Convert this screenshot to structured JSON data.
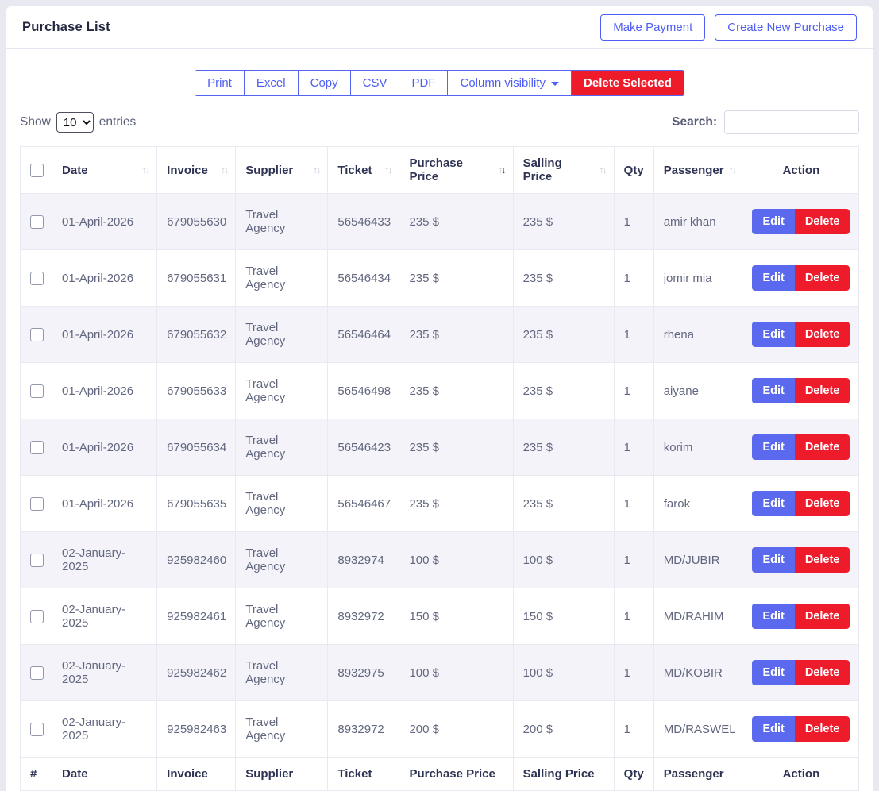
{
  "header": {
    "title": "Purchase List",
    "make_payment_label": "Make Payment",
    "create_new_purchase_label": "Create New Purchase"
  },
  "toolbar": {
    "export_buttons": [
      "Print",
      "Excel",
      "Copy",
      "CSV",
      "PDF"
    ],
    "column_visibility_label": "Column visibility",
    "delete_selected_label": "Delete Selected"
  },
  "controls": {
    "show_label": "Show",
    "entries_label": "entries",
    "page_size_selected": "10",
    "search_label": "Search:",
    "search_value": ""
  },
  "table": {
    "columns": [
      {
        "key": "checkbox",
        "label": "",
        "sortable": false
      },
      {
        "key": "date",
        "label": "Date",
        "sortable": true
      },
      {
        "key": "invoice",
        "label": "Invoice",
        "sortable": true
      },
      {
        "key": "supplier",
        "label": "Supplier",
        "sortable": true
      },
      {
        "key": "ticket",
        "label": "Ticket",
        "sortable": true
      },
      {
        "key": "purchase_price",
        "label": "Purchase Price",
        "sortable": true,
        "sorted": "desc"
      },
      {
        "key": "salling_price",
        "label": "Salling Price",
        "sortable": true
      },
      {
        "key": "qty",
        "label": "Qty",
        "sortable": false
      },
      {
        "key": "passenger",
        "label": "Passenger",
        "sortable": true
      },
      {
        "key": "action",
        "label": "Action",
        "sortable": false
      }
    ],
    "footer_columns": [
      "#",
      "Date",
      "Invoice",
      "Supplier",
      "Ticket",
      "Purchase Price",
      "Salling Price",
      "Qty",
      "Passenger",
      "Action"
    ],
    "actions": {
      "edit": "Edit",
      "delete": "Delete"
    },
    "rows": [
      {
        "date": "01-April-2026",
        "invoice": "679055630",
        "supplier": "Travel Agency",
        "ticket": "56546433",
        "purchase_price": "235 $",
        "salling_price": "235 $",
        "qty": "1",
        "passenger": "amir khan"
      },
      {
        "date": "01-April-2026",
        "invoice": "679055631",
        "supplier": "Travel Agency",
        "ticket": "56546434",
        "purchase_price": "235 $",
        "salling_price": "235 $",
        "qty": "1",
        "passenger": "jomir mia"
      },
      {
        "date": "01-April-2026",
        "invoice": "679055632",
        "supplier": "Travel Agency",
        "ticket": "56546464",
        "purchase_price": "235 $",
        "salling_price": "235 $",
        "qty": "1",
        "passenger": "rhena"
      },
      {
        "date": "01-April-2026",
        "invoice": "679055633",
        "supplier": "Travel Agency",
        "ticket": "56546498",
        "purchase_price": "235 $",
        "salling_price": "235 $",
        "qty": "1",
        "passenger": "aiyane"
      },
      {
        "date": "01-April-2026",
        "invoice": "679055634",
        "supplier": "Travel Agency",
        "ticket": "56546423",
        "purchase_price": "235 $",
        "salling_price": "235 $",
        "qty": "1",
        "passenger": "korim"
      },
      {
        "date": "01-April-2026",
        "invoice": "679055635",
        "supplier": "Travel Agency",
        "ticket": "56546467",
        "purchase_price": "235 $",
        "salling_price": "235 $",
        "qty": "1",
        "passenger": "farok"
      },
      {
        "date": "02-January-2025",
        "invoice": "925982460",
        "supplier": "Travel Agency",
        "ticket": "8932974",
        "purchase_price": "100 $",
        "salling_price": "100 $",
        "qty": "1",
        "passenger": "MD/JUBIR"
      },
      {
        "date": "02-January-2025",
        "invoice": "925982461",
        "supplier": "Travel Agency",
        "ticket": "8932972",
        "purchase_price": "150 $",
        "salling_price": "150 $",
        "qty": "1",
        "passenger": "MD/RAHIM"
      },
      {
        "date": "02-January-2025",
        "invoice": "925982462",
        "supplier": "Travel Agency",
        "ticket": "8932975",
        "purchase_price": "100 $",
        "salling_price": "100 $",
        "qty": "1",
        "passenger": "MD/KOBIR"
      },
      {
        "date": "02-January-2025",
        "invoice": "925982463",
        "supplier": "Travel Agency",
        "ticket": "8932972",
        "purchase_price": "200 $",
        "salling_price": "200 $",
        "qty": "1",
        "passenger": "MD/RASWEL"
      }
    ]
  },
  "colors": {
    "accent_blue": "#4e5ef5",
    "edit_blue": "#5b69ee",
    "danger_red": "#ee1b2b",
    "header_text": "#2e3354",
    "cell_text": "#62677f",
    "stripe": "#f3f3f9",
    "page_background": "#e8e8f0"
  }
}
